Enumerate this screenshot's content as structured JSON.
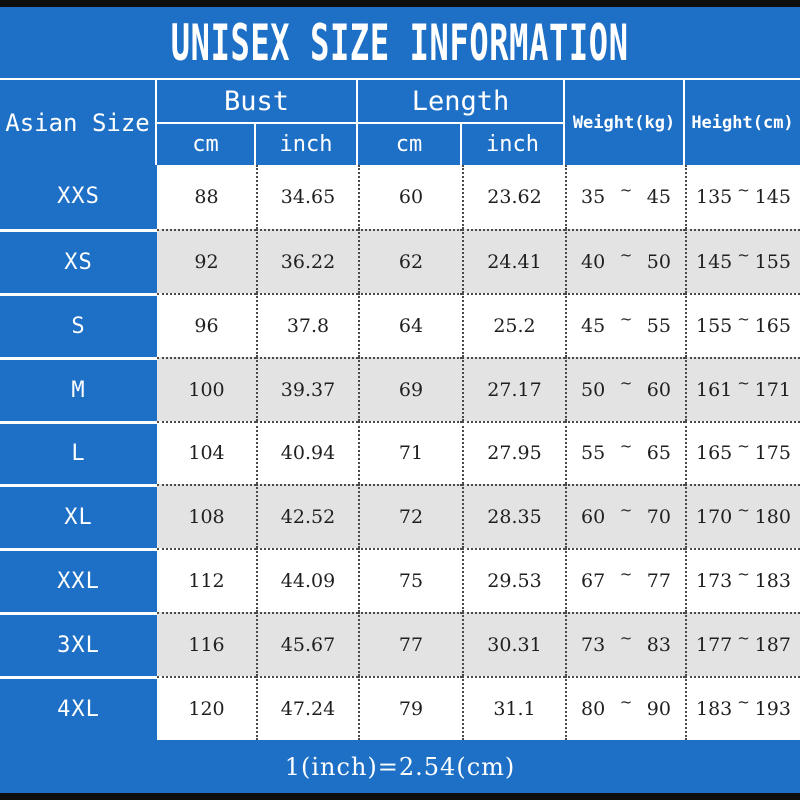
{
  "title": "UNISEX SIZE INFORMATION",
  "footer_note": "1(inch)=2.54(cm)",
  "colors": {
    "accent_blue": "#1e70c6",
    "stripe_gray": "#e3e3e4",
    "bar_black": "#0e0e0e",
    "header_text": "#ffffff",
    "data_text": "#1f1f1f"
  },
  "table": {
    "corner_header": "Asian Size",
    "group_headers": [
      {
        "label": "Bust"
      },
      {
        "label": "Length"
      }
    ],
    "sub_headers": [
      "cm",
      "inch",
      "cm",
      "inch"
    ],
    "single_headers": [
      "Weight(kg)",
      "Height(cm)"
    ],
    "range_separator": "~",
    "rows": [
      {
        "size": "XXS",
        "bust_cm": "88",
        "bust_inch": "34.65",
        "length_cm": "60",
        "length_inch": "23.62",
        "weight_min": "35",
        "weight_max": "45",
        "height_min": "135",
        "height_max": "145"
      },
      {
        "size": "XS",
        "bust_cm": "92",
        "bust_inch": "36.22",
        "length_cm": "62",
        "length_inch": "24.41",
        "weight_min": "40",
        "weight_max": "50",
        "height_min": "145",
        "height_max": "155"
      },
      {
        "size": "S",
        "bust_cm": "96",
        "bust_inch": "37.8",
        "length_cm": "64",
        "length_inch": "25.2",
        "weight_min": "45",
        "weight_max": "55",
        "height_min": "155",
        "height_max": "165"
      },
      {
        "size": "M",
        "bust_cm": "100",
        "bust_inch": "39.37",
        "length_cm": "69",
        "length_inch": "27.17",
        "weight_min": "50",
        "weight_max": "60",
        "height_min": "161",
        "height_max": "171"
      },
      {
        "size": "L",
        "bust_cm": "104",
        "bust_inch": "40.94",
        "length_cm": "71",
        "length_inch": "27.95",
        "weight_min": "55",
        "weight_max": "65",
        "height_min": "165",
        "height_max": "175"
      },
      {
        "size": "XL",
        "bust_cm": "108",
        "bust_inch": "42.52",
        "length_cm": "72",
        "length_inch": "28.35",
        "weight_min": "60",
        "weight_max": "70",
        "height_min": "170",
        "height_max": "180"
      },
      {
        "size": "XXL",
        "bust_cm": "112",
        "bust_inch": "44.09",
        "length_cm": "75",
        "length_inch": "29.53",
        "weight_min": "67",
        "weight_max": "77",
        "height_min": "173",
        "height_max": "183"
      },
      {
        "size": "3XL",
        "bust_cm": "116",
        "bust_inch": "45.67",
        "length_cm": "77",
        "length_inch": "30.31",
        "weight_min": "73",
        "weight_max": "83",
        "height_min": "177",
        "height_max": "187"
      },
      {
        "size": "4XL",
        "bust_cm": "120",
        "bust_inch": "47.24",
        "length_cm": "79",
        "length_inch": "31.1",
        "weight_min": "80",
        "weight_max": "90",
        "height_min": "183",
        "height_max": "193"
      }
    ]
  }
}
